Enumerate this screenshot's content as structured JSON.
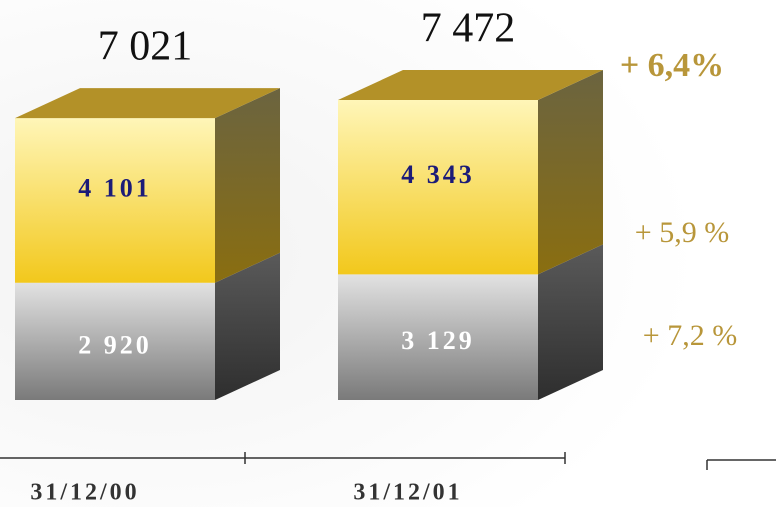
{
  "chart_data": {
    "type": "bar3d-stacked",
    "categories": [
      "31/12/00",
      "31/12/01"
    ],
    "series": [
      {
        "color": "#a8a8a8",
        "values": [
          2920,
          3129
        ],
        "value_labels": [
          "2 920",
          "3 129"
        ]
      },
      {
        "color": "#f3cf3c",
        "values": [
          4101,
          4343
        ],
        "value_labels": [
          "4 101",
          "4 343"
        ]
      }
    ],
    "totals": [
      7021,
      7472
    ],
    "total_labels": [
      "7 021",
      "7 472"
    ],
    "annotations": [
      "+ 6,4%",
      "+ 5,9 %",
      "+ 7,2 %"
    ]
  }
}
